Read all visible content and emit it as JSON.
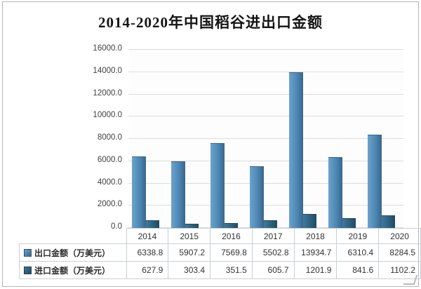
{
  "chart_data": {
    "type": "bar",
    "title": "2014-2020年中国稻谷进出口金额",
    "categories": [
      "2014",
      "2015",
      "2016",
      "2017",
      "2018",
      "2019",
      "2020"
    ],
    "series": [
      {
        "name": "出口金额（万美元）",
        "values": [
          6338.8,
          5907.2,
          7569.8,
          5502.8,
          13934.7,
          6310.4,
          8284.5
        ],
        "color": "#4e87b4",
        "color_light": "#6ba3cd",
        "color_dark": "#38678c"
      },
      {
        "name": "进口金额（万美元）",
        "values": [
          627.9,
          303.4,
          351.5,
          605.7,
          1201.9,
          841.6,
          1102.2
        ],
        "color": "#2e5f7e",
        "color_light": "#41789b",
        "color_dark": "#1f4a63"
      }
    ],
    "xlabel": "",
    "ylabel": "",
    "ylim": [
      0,
      16000
    ],
    "y_step": 2000,
    "y_tick_labels": [
      "16000.0",
      "14000.0",
      "12000.0",
      "10000.0",
      "8000.0",
      "6000.0",
      "4000.0",
      "2000.0",
      "0.0"
    ],
    "grid": true,
    "legend_position": "table-rows-left",
    "unit": "万美元"
  },
  "colors": {
    "frame_border": "#b5b5b5",
    "gridline": "#dcdcdc",
    "table_border": "#c9d0d6",
    "axis_text": "#3f3f3f",
    "title_text": "#141414"
  }
}
